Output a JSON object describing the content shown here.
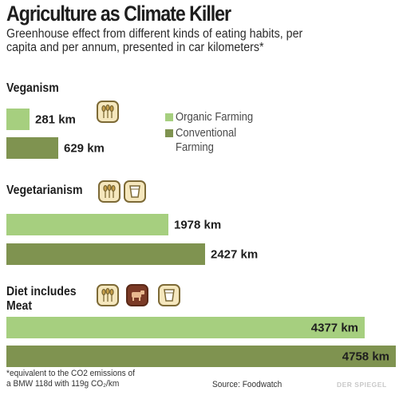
{
  "title": "Agriculture as Climate Killer",
  "subtitle": "Greenhouse effect from different kinds of eating habits, per capita and per annum, presented in car kilometers*",
  "legend": {
    "organic": "Organic Farming",
    "conventional_line1": "Conventional",
    "conventional_line2": "Farming"
  },
  "colors": {
    "organic": "#a6cf7f",
    "conventional": "#7f9350",
    "icon_fill": "#f5e7bd",
    "icon_border": "#7d6a36",
    "meat_icon": "#7b3a26"
  },
  "groups": [
    {
      "label": "Veganism",
      "icons": [
        "wheat-icon"
      ]
    },
    {
      "label": "Vegetarianism",
      "icons": [
        "wheat-icon",
        "glass-icon"
      ]
    },
    {
      "label_line1": "Diet includes",
      "label_line2": "Meat",
      "icons": [
        "wheat-icon",
        "cow-icon",
        "glass-icon"
      ]
    }
  ],
  "footnote_line1": "*equivalent to the CO2 emissions of",
  "footnote_line2": "a BMW 118d with 119g CO₂/km",
  "source": "Source: Foodwatch",
  "credit": "DER SPIEGEL",
  "chart_data": {
    "type": "bar",
    "orientation": "horizontal",
    "unit": "km",
    "categories": [
      "Veganism",
      "Vegetarianism",
      "Diet includes Meat"
    ],
    "series": [
      {
        "name": "Organic Farming",
        "values": [
          281,
          1978,
          4377
        ],
        "labels": [
          "281 km",
          "1978 km",
          "4377 km"
        ]
      },
      {
        "name": "Conventional Farming",
        "values": [
          629,
          2427,
          4758
        ],
        "labels": [
          "629 km",
          "2427 km",
          "4758 km"
        ]
      }
    ],
    "title": "Agriculture as Climate Killer",
    "xlim": [
      0,
      4758
    ],
    "grid": false,
    "legend_position": "right of first group"
  }
}
